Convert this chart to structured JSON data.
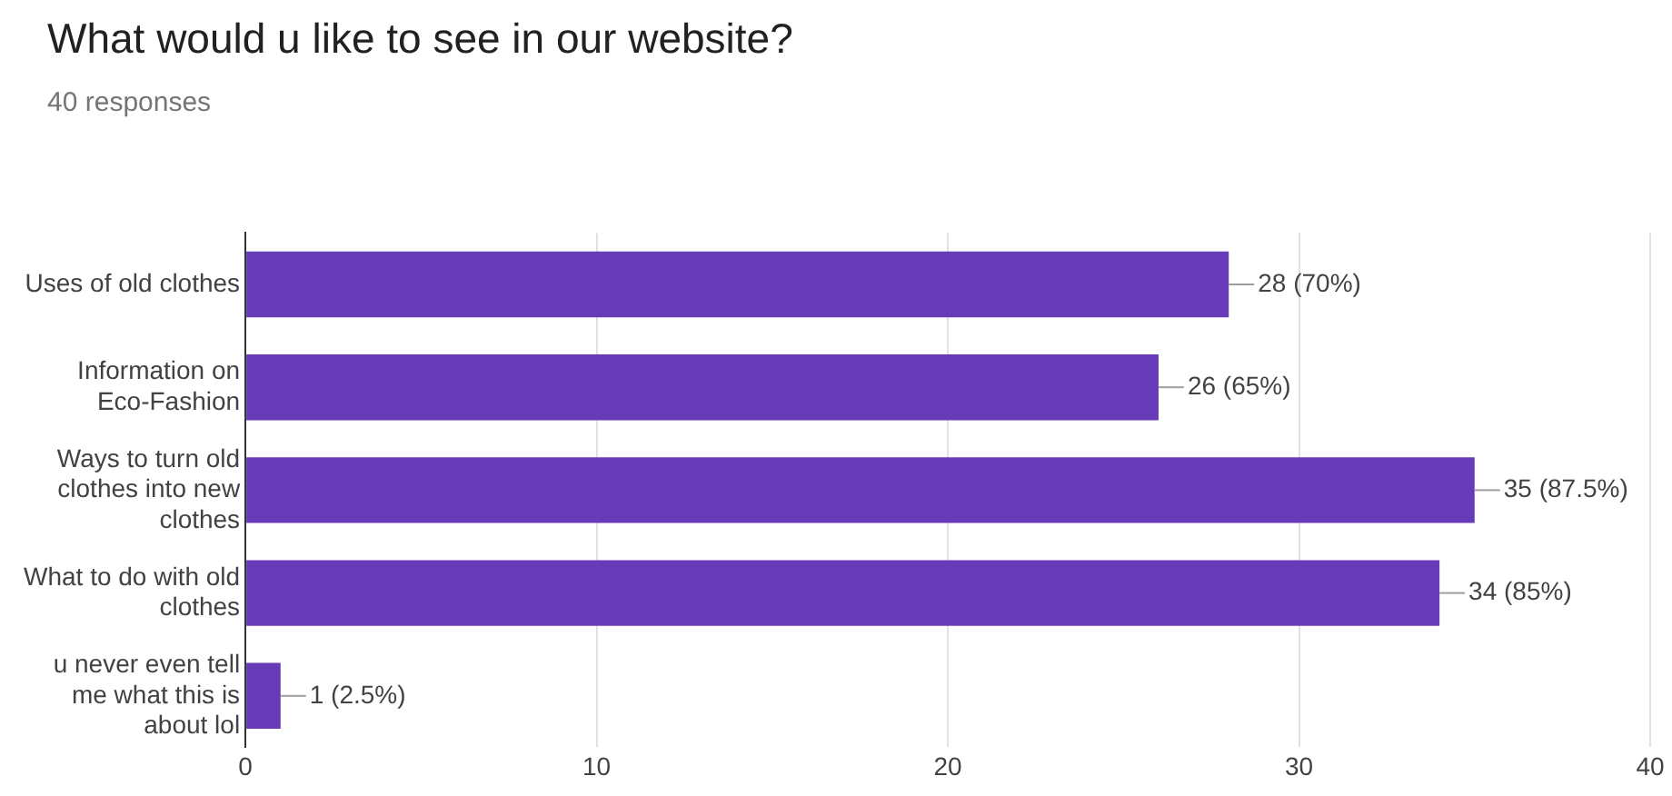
{
  "chart_data": {
    "type": "bar",
    "orientation": "horizontal",
    "title": "What would u like to see in our website?",
    "subtitle": "40 responses",
    "categories": [
      "Uses of old clothes",
      "Information on Eco-Fashion",
      "Ways to turn old clothes into new clothes",
      "What to do with old clothes",
      "u never even tell me what this is about lol"
    ],
    "values": [
      28,
      26,
      35,
      34,
      1
    ],
    "value_labels": [
      "28 (70%)",
      "26 (65%)",
      "35 (87.5%)",
      "34 (85%)",
      "1 (2.5%)"
    ],
    "color": "#673ab7",
    "xlim": [
      0,
      40
    ],
    "xticks": [
      0,
      10,
      20,
      30,
      40
    ],
    "grid": "x",
    "legend": false
  }
}
